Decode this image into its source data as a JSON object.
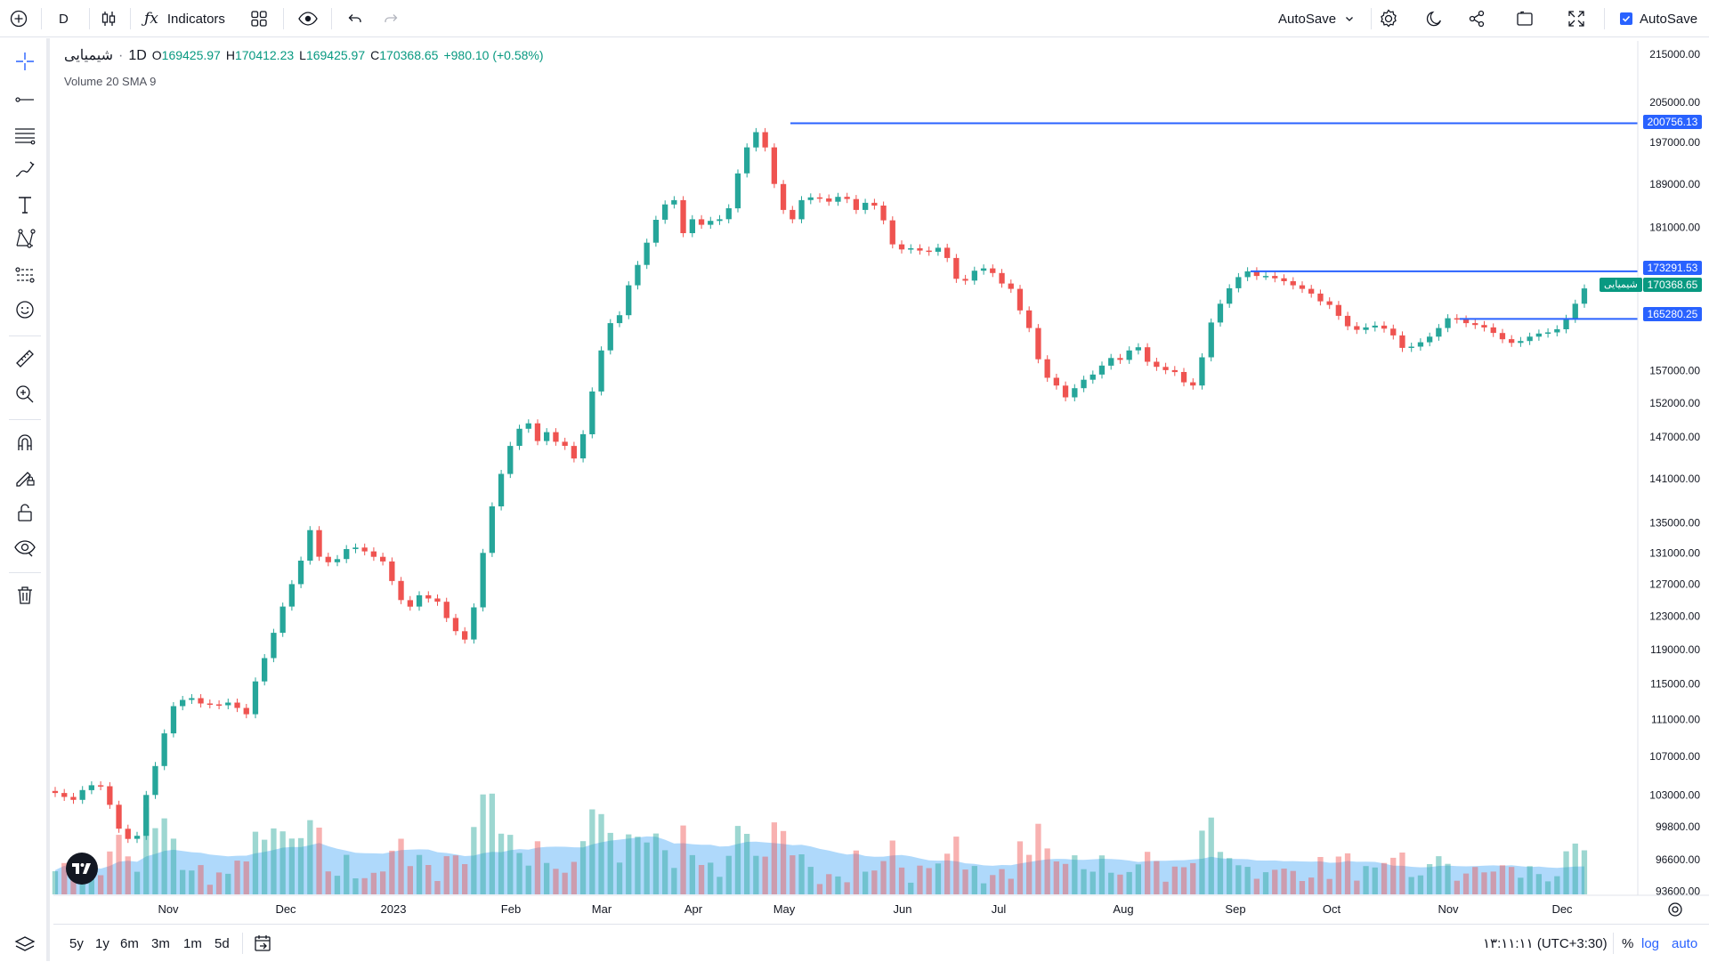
{
  "toolbar": {
    "interval": "D",
    "indicators_label": "Indicators",
    "autosave_label": "AutoSave",
    "autosave_checkbox_label": "AutoSave"
  },
  "legend": {
    "symbol": "شیمیایی",
    "interval": "1D",
    "open_label": "O",
    "open": "169425.97",
    "high_label": "H",
    "high": "170412.23",
    "low_label": "L",
    "low": "169425.97",
    "close_label": "C",
    "close": "170368.65",
    "change": "+980.10 (+0.58%)",
    "volume_indicator": "Volume 20 SMA 9"
  },
  "price_axis": {
    "ticks": [
      "215000.00",
      "205000.00",
      "197000.00",
      "189000.00",
      "181000.00",
      "157000.00",
      "152000.00",
      "147000.00",
      "141000.00",
      "135000.00",
      "131000.00",
      "127000.00",
      "123000.00",
      "119000.00",
      "115000.00",
      "111000.00",
      "107000.00",
      "103000.00",
      "99800.00",
      "96600.00",
      "93600.00"
    ],
    "tags": {
      "line1": "200756.13",
      "line2": "173291.53",
      "last_symbol": "شیمیایی",
      "last_price": "170368.65",
      "line3": "165280.25"
    }
  },
  "time_axis": {
    "labels": [
      "Nov",
      "Dec",
      "2023",
      "Feb",
      "Mar",
      "Apr",
      "May",
      "Jun",
      "Jul",
      "Aug",
      "Sep",
      "Oct",
      "Nov",
      "Dec"
    ]
  },
  "bottom": {
    "ranges": [
      "5y",
      "1y",
      "6m",
      "3m",
      "1m",
      "5d"
    ],
    "clock": "۱۳:۱۱:۱۱ (UTC+3:30)",
    "percent": "%",
    "log": "log",
    "auto": "auto"
  },
  "colors": {
    "up": "#26a69a",
    "down": "#ef5350",
    "hline": "#2962ff",
    "vol_sma": "#6eb9f7",
    "accent": "#2962ff"
  },
  "chart_data": {
    "type": "candlestick",
    "interval": "1D",
    "x_labels": [
      "Nov",
      "Dec",
      "2023",
      "Feb",
      "Mar",
      "Apr",
      "May",
      "Jun",
      "Jul",
      "Aug",
      "Sep",
      "Oct",
      "Nov",
      "Dec"
    ],
    "ylim": [
      91000,
      218000
    ],
    "y_scale": "log",
    "horizontal_lines": [
      200756.13,
      173291.53,
      165280.25
    ],
    "last_price": 170368.65,
    "close_series": [
      103200,
      102800,
      102500,
      103500,
      104000,
      103900,
      102000,
      99600,
      98600,
      98900,
      103000,
      106000,
      109500,
      112500,
      113200,
      113400,
      112800,
      112700,
      112600,
      112900,
      112300,
      111600,
      115300,
      118000,
      121000,
      124200,
      127000,
      130000,
      134000,
      130500,
      129800,
      130200,
      131500,
      131700,
      131200,
      130500,
      129900,
      127400,
      125000,
      124200,
      125600,
      125200,
      124800,
      122800,
      121200,
      120200,
      124100,
      131000,
      137200,
      141700,
      145700,
      148200,
      149000,
      146400,
      147700,
      146300,
      145700,
      143900,
      147400,
      153800,
      160200,
      164600,
      165900,
      170900,
      174400,
      178300,
      182400,
      185200,
      186000,
      180000,
      182500,
      181500,
      182200,
      182500,
      184500,
      191000,
      196000,
      199000,
      196000,
      189000,
      184200,
      182500,
      186000,
      186500,
      186300,
      185700,
      186600,
      186200,
      184200,
      185500,
      185000,
      182300,
      178000,
      177100,
      177300,
      176900,
      176700,
      177400,
      175600,
      172000,
      171700,
      173400,
      173800,
      173000,
      171200,
      170300,
      166700,
      163800,
      158800,
      155900,
      154700,
      152900,
      154300,
      155600,
      156400,
      157800,
      159000,
      158700,
      160200,
      160700,
      158400,
      157600,
      157100,
      156800,
      155200,
      154700,
      159100,
      164700,
      167800,
      170400,
      172300,
      173300,
      172500,
      172500,
      172100,
      171600,
      170900,
      170300,
      169500,
      168200,
      167600,
      165800,
      164100,
      163500,
      163900,
      164200,
      163700,
      162600,
      160600,
      160800,
      161500,
      162400,
      163800,
      165400,
      165200,
      164600,
      164300,
      163900,
      163000,
      162000,
      161400,
      161700,
      162400,
      162900,
      163100,
      163600,
      165300,
      167800,
      170369
    ]
  }
}
